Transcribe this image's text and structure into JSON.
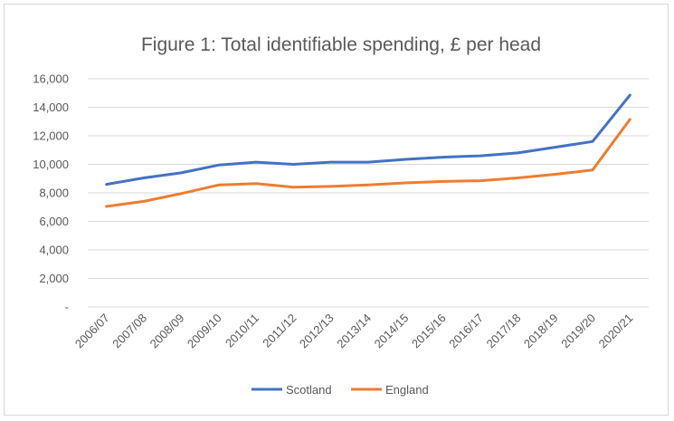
{
  "chart_data": {
    "type": "line",
    "title": "Figure 1: Total identifiable spending, £ per head",
    "xlabel": "",
    "ylabel": "",
    "categories": [
      "2006/07",
      "2007/08",
      "2008/09",
      "2009/10",
      "2010/11",
      "2011/12",
      "2012/13",
      "2013/14",
      "2014/15",
      "2015/16",
      "2016/17",
      "2017/18",
      "2018/19",
      "2019/20",
      "2020/21"
    ],
    "ylim": [
      0,
      16000
    ],
    "yticks": [
      {
        "value": 0,
        "label": "-"
      },
      {
        "value": 2000,
        "label": "2,000"
      },
      {
        "value": 4000,
        "label": "4,000"
      },
      {
        "value": 6000,
        "label": "6,000"
      },
      {
        "value": 8000,
        "label": "8,000"
      },
      {
        "value": 10000,
        "label": "10,000"
      },
      {
        "value": 12000,
        "label": "12,000"
      },
      {
        "value": 14000,
        "label": "14,000"
      },
      {
        "value": 16000,
        "label": "16,000"
      }
    ],
    "grid": true,
    "legend_position": "bottom",
    "series": [
      {
        "name": "Scotland",
        "color": "#4472C4",
        "values": [
          8600,
          9050,
          9400,
          9950,
          10150,
          10000,
          10150,
          10150,
          10350,
          10500,
          10600,
          10800,
          11200,
          11600,
          14850
        ]
      },
      {
        "name": "England",
        "color": "#ED7D31",
        "values": [
          7050,
          7400,
          7950,
          8550,
          8650,
          8400,
          8450,
          8550,
          8700,
          8800,
          8850,
          9050,
          9300,
          9600,
          13150
        ]
      }
    ]
  }
}
